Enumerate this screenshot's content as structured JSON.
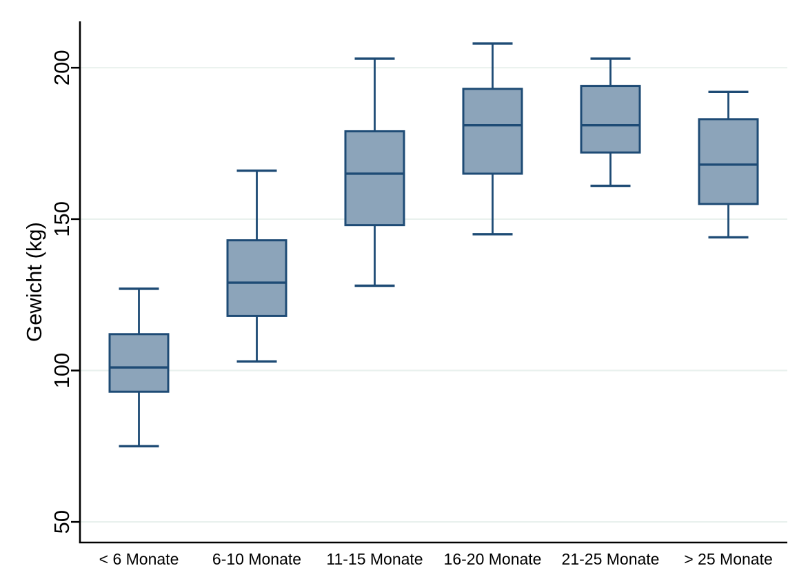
{
  "chart_data": {
    "type": "boxplot",
    "title": "",
    "xlabel": "",
    "ylabel": "Gewicht (kg)",
    "ylim": [
      43.2,
      215.3
    ],
    "yticks": [
      50,
      100,
      150,
      200
    ],
    "grid": true,
    "grid_color": "#e9f1ee",
    "legend": "none",
    "categories": [
      "< 6 Monate",
      "6-10 Monate",
      "11-15 Monate",
      "16-20 Monate",
      "21-25 Monate",
      "> 25 Monate"
    ],
    "series": [
      {
        "category": "< 6 Monate",
        "whisker_low": 75,
        "q1": 93,
        "median": 101,
        "q3": 112,
        "whisker_high": 127
      },
      {
        "category": "6-10 Monate",
        "whisker_low": 103,
        "q1": 118,
        "median": 129,
        "q3": 143,
        "whisker_high": 166
      },
      {
        "category": "11-15 Monate",
        "whisker_low": 128,
        "q1": 148,
        "median": 165,
        "q3": 179,
        "whisker_high": 203
      },
      {
        "category": "16-20 Monate",
        "whisker_low": 145,
        "q1": 165,
        "median": 181,
        "q3": 193,
        "whisker_high": 208
      },
      {
        "category": "21-25 Monate",
        "whisker_low": 161,
        "q1": 172,
        "median": 181,
        "q3": 194,
        "whisker_high": 203
      },
      {
        "category": "> 25 Monate",
        "whisker_low": 144,
        "q1": 155,
        "median": 168,
        "q3": 183,
        "whisker_high": 192
      }
    ],
    "colors": {
      "box_fill": "#8ca4ba",
      "box_stroke": "#1e4b75",
      "whisker": "#1e4b75",
      "axis": "#000000",
      "background": "#ffffff"
    }
  }
}
